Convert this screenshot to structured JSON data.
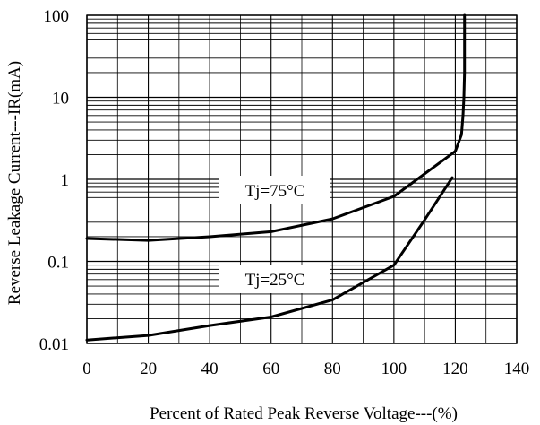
{
  "chart_data": {
    "type": "line",
    "title": "",
    "xlabel": "Percent of Rated Peak Reverse Voltage---(%)",
    "ylabel": "Reverse Leakage Current---IR(mA)",
    "xlim": [
      0,
      140
    ],
    "ylim": [
      0.01,
      100
    ],
    "y_scale": "log",
    "grid": true,
    "x_ticks": [
      "0",
      "20",
      "40",
      "60",
      "80",
      "100",
      "120",
      "140"
    ],
    "y_ticks": [
      "0.01",
      "0.1",
      "1",
      "10",
      "100"
    ],
    "series": [
      {
        "name": "Tj=75°C",
        "x": [
          0,
          20,
          40,
          60,
          80,
          100,
          120,
          122,
          122.5,
          122.8,
          123,
          123,
          123
        ],
        "y": [
          0.19,
          0.18,
          0.2,
          0.23,
          0.33,
          0.62,
          2.2,
          3.5,
          6,
          10,
          20,
          50,
          100
        ]
      },
      {
        "name": "Tj=25°C",
        "x": [
          0,
          20,
          40,
          60,
          80,
          100,
          110,
          119
        ],
        "y": [
          0.011,
          0.0125,
          0.0165,
          0.021,
          0.034,
          0.09,
          0.32,
          1.05
        ]
      }
    ],
    "colors": {
      "line": "#000000",
      "grid": "#000000",
      "background": "#ffffff"
    }
  }
}
